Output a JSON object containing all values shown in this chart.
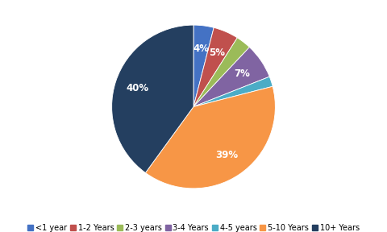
{
  "labels": [
    "<1 year",
    "1-2 Years",
    "2-3 years",
    "3-4 Years",
    "4-5 years",
    "5-10 Years",
    "10+ Years"
  ],
  "values": [
    4,
    5,
    3,
    7,
    2,
    39,
    40
  ],
  "colors": [
    "#4472C4",
    "#C0504D",
    "#9BBB59",
    "#8064A2",
    "#4BACC6",
    "#F79646",
    "#243F60"
  ],
  "background_color": "#FFFFFF",
  "legend_fontsize": 7.0,
  "pct_fontsize": 8.5,
  "startangle": 90,
  "pct_threshold": 4
}
